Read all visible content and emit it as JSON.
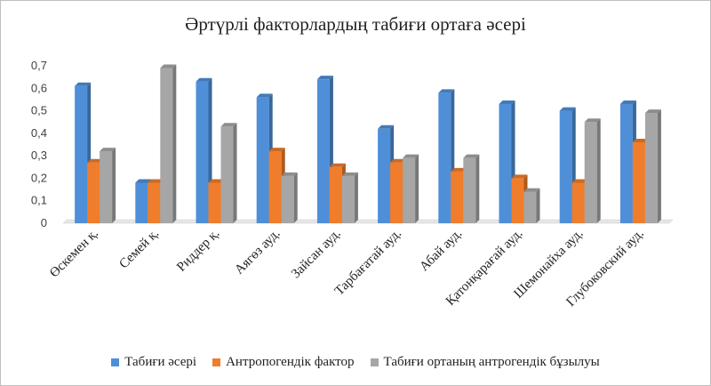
{
  "chart_data": {
    "type": "bar",
    "title": "Әртүрлі факторлардың табиғи ортаға әсері",
    "categories": [
      "Өскемен қ.",
      "Семей қ.",
      "Риддер қ.",
      "Аягөз ауд.",
      "Зайсан ауд.",
      "Тарбағатай ауд.",
      "Абай ауд.",
      "Қатонқарағай ауд.",
      "Шемонайха ауд.",
      "Глубоковский ауд."
    ],
    "series": [
      {
        "name": "Табиғи әсері",
        "color": "#4f8fd8",
        "values": [
          0.61,
          0.18,
          0.63,
          0.56,
          0.64,
          0.42,
          0.58,
          0.53,
          0.5,
          0.53
        ]
      },
      {
        "name": "Антропогендік фактор",
        "color": "#f07d2b",
        "values": [
          0.27,
          0.18,
          0.18,
          0.32,
          0.25,
          0.27,
          0.23,
          0.2,
          0.18,
          0.36
        ]
      },
      {
        "name": "Табиғи ортаның антрогендік бұзылуы",
        "color": "#a6a6a6",
        "values": [
          0.32,
          0.69,
          0.43,
          0.21,
          0.21,
          0.29,
          0.29,
          0.14,
          0.45,
          0.49
        ]
      }
    ],
    "ylim": [
      0,
      0.7
    ],
    "yticks": [
      "0",
      "0,1",
      "0,2",
      "0,3",
      "0,4",
      "0,5",
      "0,6",
      "0,7"
    ],
    "grid": false,
    "legend_position": "bottom",
    "style": "3d-column"
  }
}
